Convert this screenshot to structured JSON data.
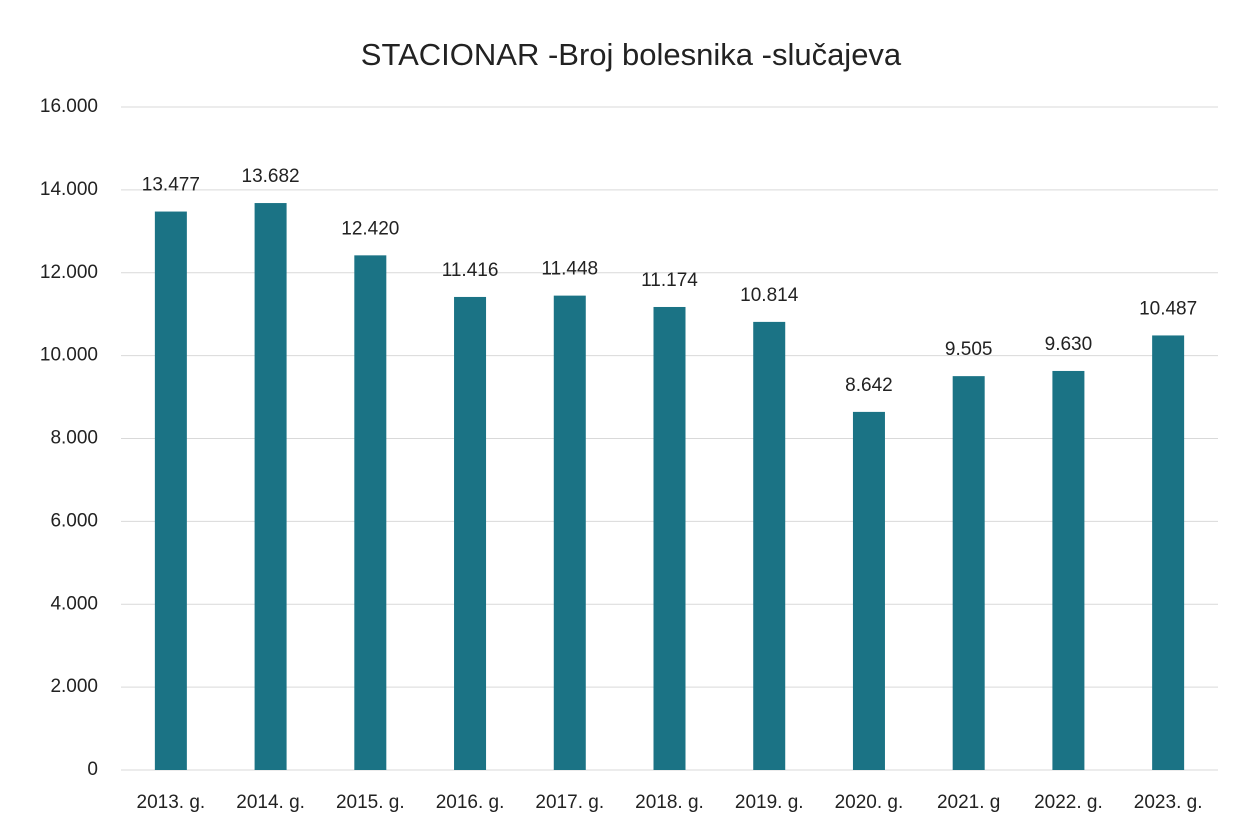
{
  "chart_data": {
    "type": "bar",
    "title": "STACIONAR -Broj bolesnika -slučajeva",
    "categories": [
      "2013. g.",
      "2014. g.",
      "2015. g.",
      "2016. g.",
      "2017. g.",
      "2018. g.",
      "2019. g.",
      "2020. g.",
      "2021. g",
      "2022. g.",
      "2023. g."
    ],
    "values": [
      13477,
      13682,
      12420,
      11416,
      11448,
      11174,
      10814,
      8642,
      9505,
      9630,
      10487
    ],
    "value_labels": [
      "13.477",
      "13.682",
      "12.420",
      "11.416",
      "11.448",
      "11.174",
      "10.814",
      "8.642",
      "9.505",
      "9.630",
      "10.487"
    ],
    "color": "#1b7385",
    "ylim": [
      0,
      16000
    ],
    "yticks": [
      0,
      {
        "value": 2000,
        "label": "2.000"
      },
      {
        "value": 4000,
        "label": "4.000"
      },
      {
        "value": 6000,
        "label": "6.000"
      },
      {
        "value": 8000,
        "label": "8.000"
      },
      {
        "value": 10000,
        "label": "10.000"
      },
      {
        "value": 12000,
        "label": "12.000"
      },
      {
        "value": 14000,
        "label": "14.000"
      },
      {
        "value": 16000,
        "label": "16.000"
      }
    ],
    "grid": true
  }
}
